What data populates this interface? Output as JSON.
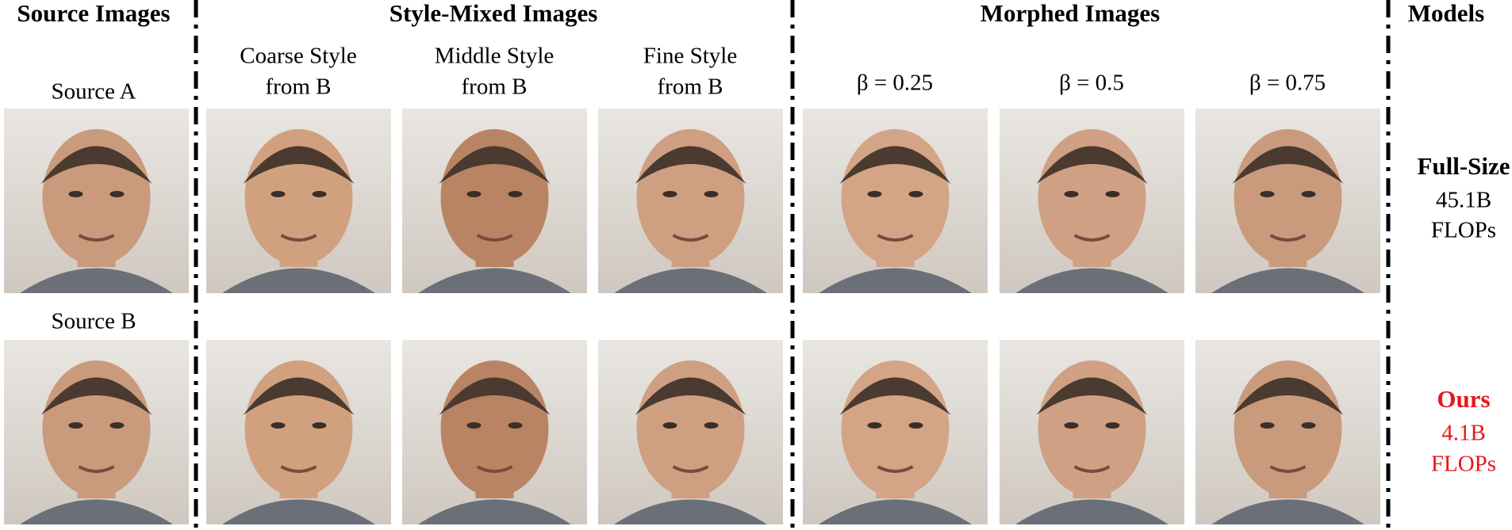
{
  "headers": [
    "Source Images",
    "Style-Mixed Images",
    "Morphed Images",
    "Models"
  ],
  "sources": [
    "Source A",
    "Source B"
  ],
  "style_columns": [
    [
      "Coarse Style",
      "from B"
    ],
    [
      "Middle Style",
      "from B"
    ],
    [
      "Fine Style",
      "from B"
    ]
  ],
  "morph_columns": [
    "β = 0.25",
    "β = 0.5",
    "β = 0.75"
  ],
  "models": [
    {
      "name": "Full-Size",
      "cost": "45.1B",
      "unit": "FLOPs"
    },
    {
      "name": "Ours",
      "cost": "4.1B",
      "unit": "FLOPs"
    }
  ]
}
